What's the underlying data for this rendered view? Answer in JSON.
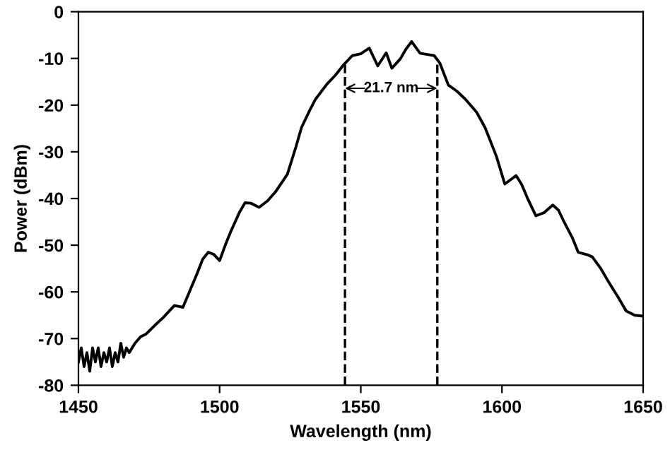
{
  "chart_data": {
    "type": "line",
    "xlabel": "Wavelength (nm)",
    "ylabel": "Power (dBm)",
    "xlim": [
      1450,
      1650
    ],
    "xticks": [
      1450,
      1500,
      1550,
      1600,
      1650
    ],
    "ylim": [
      -80,
      0
    ],
    "yticks": [
      0,
      -10,
      -20,
      -30,
      -40,
      -50,
      -60,
      -70,
      -80
    ],
    "grid": false,
    "marker": "none",
    "line_style": "solid",
    "series": [
      {
        "color": "#000000",
        "x": [
          1450,
          1451,
          1452,
          1453,
          1454,
          1455,
          1456,
          1457,
          1458,
          1459,
          1460,
          1461,
          1462,
          1463,
          1464,
          1465,
          1466,
          1467,
          1468,
          1470,
          1472,
          1474,
          1477,
          1480,
          1484,
          1487,
          1490,
          1492,
          1494,
          1496,
          1498,
          1500,
          1502,
          1504,
          1507,
          1509,
          1511,
          1514,
          1517,
          1520,
          1524,
          1527,
          1529,
          1532,
          1534,
          1538,
          1541,
          1544,
          1547,
          1550,
          1553,
          1556,
          1559,
          1561,
          1564,
          1566,
          1568,
          1571,
          1574,
          1576,
          1578,
          1581,
          1584,
          1587,
          1591,
          1594,
          1598,
          1601,
          1603,
          1605,
          1607,
          1609,
          1612,
          1615,
          1618,
          1620,
          1622,
          1625,
          1627,
          1630,
          1632,
          1635,
          1638,
          1641,
          1644,
          1647,
          1650
        ],
        "values": [
          -75,
          -72,
          -76,
          -73,
          -77,
          -72,
          -75,
          -72,
          -76,
          -73,
          -75,
          -72,
          -76,
          -73,
          -75,
          -71,
          -74,
          -72,
          -73,
          -71,
          -69.6,
          -69,
          -67.2,
          -65.5,
          -62.9,
          -63.3,
          -59,
          -56.1,
          -53,
          -51.5,
          -52,
          -53.3,
          -50,
          -47,
          -43,
          -40.9,
          -41,
          -41.9,
          -40.5,
          -38.4,
          -34.8,
          -29,
          -24.8,
          -21,
          -18.7,
          -15.5,
          -13.6,
          -11.3,
          -9.4,
          -9,
          -7.8,
          -11.6,
          -8.8,
          -12.1,
          -10.1,
          -8,
          -6.4,
          -8.9,
          -9.2,
          -9.4,
          -11,
          -15.7,
          -17,
          -18.7,
          -21.5,
          -24.8,
          -30.9,
          -36.9,
          -36,
          -35.1,
          -37,
          -39.9,
          -43.7,
          -43,
          -41.4,
          -42.5,
          -45,
          -48.5,
          -51.5,
          -52,
          -52.5,
          -55,
          -58.1,
          -61,
          -64.1,
          -65,
          -65.2
        ]
      }
    ],
    "ref_lines": [
      {
        "axis": "x",
        "value": 1544.4,
        "line_style": "dashed",
        "color": "#000000"
      },
      {
        "axis": "x",
        "value": 1577.1,
        "line_style": "dashed",
        "color": "#000000"
      }
    ],
    "annotations": [
      "21.7 nm"
    ]
  }
}
